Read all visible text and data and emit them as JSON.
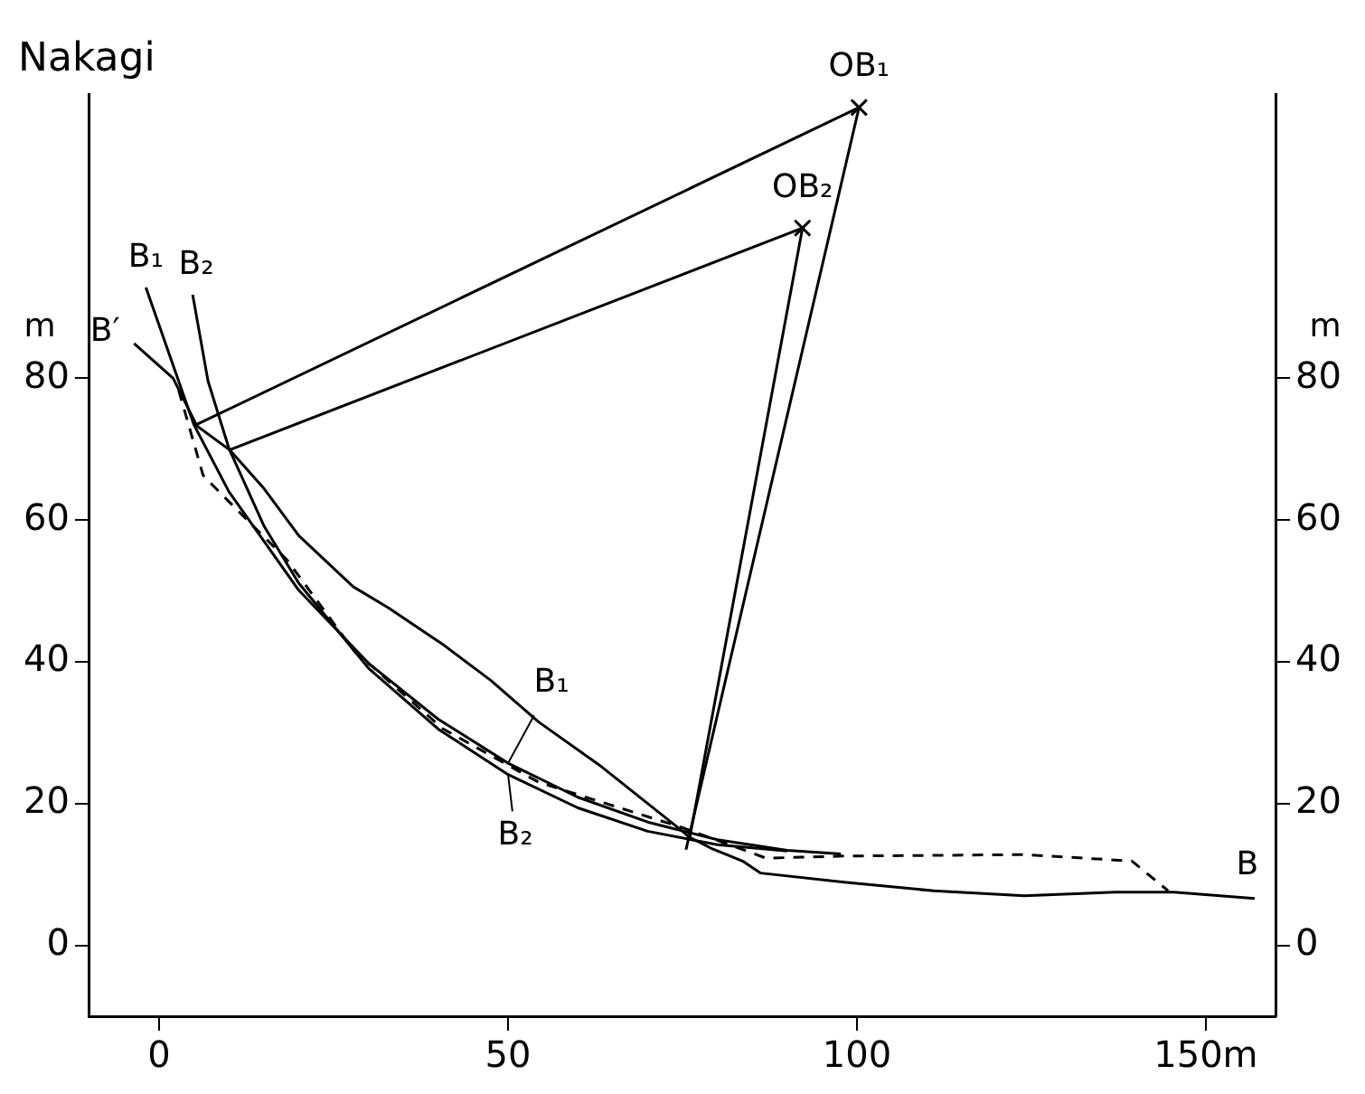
{
  "chart_data": {
    "type": "line",
    "title": "Nakagi",
    "ylabel": "m",
    "y2label": "m",
    "xlim": [
      -10,
      160
    ],
    "xticks": [
      0,
      50,
      100,
      {
        "value": 150,
        "label": "150m"
      }
    ],
    "ylim": [
      -10,
      120
    ],
    "yticks": [
      0,
      20,
      40,
      60,
      80
    ],
    "y2lim": [
      -10,
      120
    ],
    "y2ticks": [
      0,
      20,
      40,
      60,
      80
    ],
    "grid": false,
    "legend": false,
    "marker": "none",
    "line_style": "solid",
    "series": [
      {
        "color": "#000000",
        "x": [
          -3.6,
          2,
          5.4,
          10.1,
          14.9,
          20,
          27.8,
          32.9,
          40.6,
          47.5,
          54.4,
          63,
          75,
          75.9,
          79.3,
          83.6,
          86.2,
          98.2,
          111,
          124,
          137,
          145.4,
          157
        ],
        "values": [
          84.9,
          80,
          73.3,
          69.9,
          64.6,
          57.8,
          50.6,
          47.6,
          42.5,
          37.4,
          31.5,
          25.5,
          16.1,
          15.3,
          13.6,
          11.9,
          10.2,
          8.9,
          7.7,
          7,
          7.5,
          7.5,
          6.6
        ]
      },
      {
        "color": "#000000",
        "line_style": "dashed",
        "x": [
          2.8,
          6.3,
          11.4,
          18.3,
          27.8,
          40.6,
          54.4,
          75,
          87,
          98.2,
          124,
          139.4,
          144.6
        ],
        "values": [
          78.3,
          66.3,
          61.2,
          54.4,
          41.7,
          30.6,
          23,
          16.6,
          12.3,
          12.6,
          12.8,
          11.9,
          7.7
        ]
      },
      {
        "type": "line",
        "color": "#000000",
        "x": [
          -1.9,
          5,
          10,
          20,
          30,
          40,
          50,
          60,
          70,
          80,
          90,
          97.7
        ],
        "values": [
          92.8,
          73.4,
          64,
          50.1,
          39.8,
          31.9,
          25.7,
          20.9,
          17.4,
          14.9,
          13.4,
          12.9
        ]
      },
      {
        "type": "line",
        "color": "#000000",
        "x": [
          4.8,
          7,
          10,
          15,
          20,
          30,
          40,
          50,
          60,
          70,
          80,
          90
        ],
        "values": [
          91.8,
          79.6,
          70.1,
          59.2,
          51.1,
          39.1,
          30.5,
          24.1,
          19.4,
          16.1,
          14.2,
          13.3
        ]
      },
      {
        "type": "line",
        "color": "#000000",
        "x": [
          5.2,
          100.3,
          75.5
        ],
        "values": [
          73.4,
          118.2,
          13.5
        ]
      },
      {
        "type": "line",
        "color": "#000000",
        "x": [
          10.1,
          92.2,
          76
        ],
        "values": [
          69.9,
          101.2,
          15
        ]
      },
      {
        "type": "scatter",
        "color": "#000000",
        "marker": "cross",
        "x": [
          100.3,
          92.2
        ],
        "values": [
          118.2,
          101.2
        ]
      }
    ],
    "annotations": [
      {
        "text": "OB₁",
        "x": 100.3,
        "y": 118.2
      },
      {
        "text": "OB₂",
        "x": 92.2,
        "y": 101.2
      },
      {
        "text": "B₁",
        "x": -1.9,
        "y": 92.8
      },
      {
        "text": "B₂",
        "x": 4.8,
        "y": 91.8
      },
      {
        "text": "B′",
        "x": -3.6,
        "y": 84.9
      },
      {
        "text": "B₁",
        "x": 50,
        "y": 25.7
      },
      {
        "text": "B₂",
        "x": 50,
        "y": 24.1
      },
      {
        "text": "B",
        "x": 157,
        "y": 6.6
      }
    ]
  }
}
